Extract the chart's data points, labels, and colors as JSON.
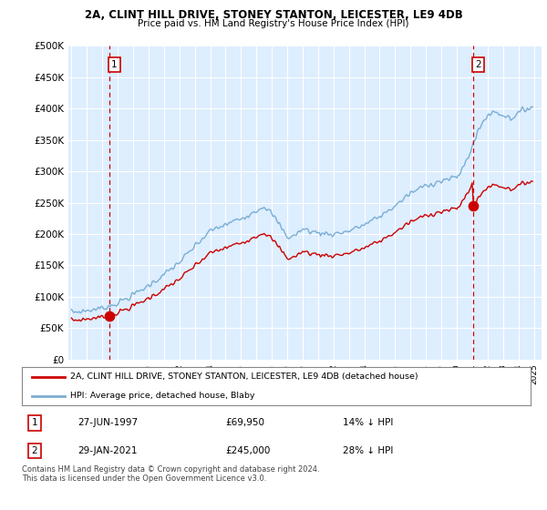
{
  "title1": "2A, CLINT HILL DRIVE, STONEY STANTON, LEICESTER, LE9 4DB",
  "title2": "Price paid vs. HM Land Registry's House Price Index (HPI)",
  "ylabel_ticks": [
    "£0",
    "£50K",
    "£100K",
    "£150K",
    "£200K",
    "£250K",
    "£300K",
    "£350K",
    "£400K",
    "£450K",
    "£500K"
  ],
  "ytick_values": [
    0,
    50000,
    100000,
    150000,
    200000,
    250000,
    300000,
    350000,
    400000,
    450000,
    500000
  ],
  "xlim": [
    1994.8,
    2025.5
  ],
  "ylim": [
    0,
    500000
  ],
  "xtick_years": [
    1995,
    1996,
    1997,
    1998,
    1999,
    2000,
    2001,
    2002,
    2003,
    2004,
    2005,
    2006,
    2007,
    2008,
    2009,
    2010,
    2011,
    2012,
    2013,
    2014,
    2015,
    2016,
    2017,
    2018,
    2019,
    2020,
    2021,
    2022,
    2023,
    2024,
    2025
  ],
  "hpi_color": "#7aadd4",
  "sale_color": "#cc0000",
  "chart_bg": "#ddeeff",
  "background_color": "#ffffff",
  "grid_color": "#ffffff",
  "transaction1": {
    "date": "27-JUN-1997",
    "x": 1997.49,
    "price": 69950,
    "label": "1"
  },
  "transaction2": {
    "date": "29-JAN-2021",
    "x": 2021.08,
    "price": 245000,
    "label": "2"
  },
  "legend_line1": "2A, CLINT HILL DRIVE, STONEY STANTON, LEICESTER, LE9 4DB (detached house)",
  "legend_line2": "HPI: Average price, detached house, Blaby",
  "footnote": "Contains HM Land Registry data © Crown copyright and database right 2024.\nThis data is licensed under the Open Government Licence v3.0.",
  "table_row1": [
    "1",
    "27-JUN-1997",
    "£69,950",
    "14% ↓ HPI"
  ],
  "table_row2": [
    "2",
    "29-JAN-2021",
    "£245,000",
    "28% ↓ HPI"
  ]
}
